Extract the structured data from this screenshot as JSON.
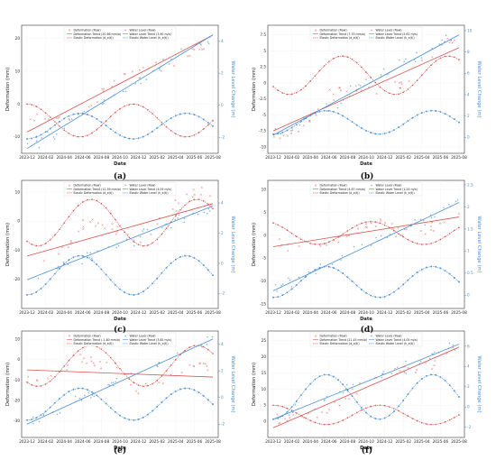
{
  "figure": {
    "colors": {
      "deformation": "#d9534f",
      "water": "#4a8fd4",
      "frame": "#333333"
    }
  },
  "chart_data": [
    {
      "type": "line",
      "panel_label": "(a)",
      "xlabel": "Date",
      "ylabel": "Deformation (mm)",
      "ylabel_right": "Water Level Change (m)",
      "x_ticks": [
        "2023-12",
        "2024-02",
        "2024-04",
        "2024-06",
        "2024-08",
        "2024-10",
        "2024-12",
        "2025-02",
        "2025-04",
        "2025-06",
        "2025-08"
      ],
      "y_ticks": [
        20,
        10,
        0,
        -10
      ],
      "y2_ticks": [
        4,
        2,
        0,
        -2
      ],
      "ylim": [
        -15,
        24
      ],
      "y2lim": [
        -3,
        5
      ],
      "legend": [
        "Deformation (Raw)",
        "Water Level (Raw)",
        "Deformation Trend (20.66 mm/a)",
        "Water Level Trend (3.90 m/a)",
        "Elastic Deformation (d_e(t))",
        "Elastic Water Level (h_e(t))"
      ],
      "legend_position": "top-center",
      "trend_def": [
        -8.5,
        21
      ],
      "trend_water": [
        -2.7,
        4.4
      ],
      "elastic_def": {
        "offset": -5,
        "amp": 5,
        "phase": 0
      },
      "elastic_water": {
        "offset": -1.3,
        "amp": 0.8,
        "phase": 0
      }
    },
    {
      "type": "line",
      "panel_label": "(b)",
      "xlabel": "Date",
      "ylabel": "Deformation (mm)",
      "ylabel_right": "Water Level Change (m)",
      "x_ticks": [
        "2023-12",
        "2024-02",
        "2024-04",
        "2024-06",
        "2024-08",
        "2024-10",
        "2024-12",
        "2025-02",
        "2025-04",
        "2025-06",
        "2025-08"
      ],
      "y_ticks": [
        7.5,
        5.0,
        2.5,
        0.0,
        -2.5,
        -5.0,
        -7.5,
        -10.0
      ],
      "y2_ticks": [
        10,
        8,
        6,
        4,
        2,
        0
      ],
      "ylim": [
        -11,
        9
      ],
      "y2lim": [
        -1.5,
        10.5
      ],
      "legend": [
        "Deformation (Raw)",
        "Water Level (Raw)",
        "Deformation Trend (7.33 mm/a)",
        "Water Level Trend (5.62 m/a)",
        "Elastic Deformation (d_e(t))",
        "Elastic Water Level (h_e(t))"
      ],
      "legend_position": "top-center",
      "trend_def": [
        -7.5,
        5.5
      ],
      "trend_water": [
        0.2,
        9.6
      ],
      "elastic_def": {
        "offset": 1.2,
        "amp": 3,
        "phase": 2.2
      },
      "elastic_water": {
        "offset": 1.4,
        "amp": 1.1,
        "phase": 0
      }
    },
    {
      "type": "line",
      "panel_label": "(c)",
      "xlabel": "Date",
      "ylabel": "Deformation (mm)",
      "ylabel_right": "Water Level Change (m)",
      "x_ticks": [
        "2023-12",
        "2024-02",
        "2024-04",
        "2024-06",
        "2024-08",
        "2024-10",
        "2024-12",
        "2025-02",
        "2025-04",
        "2025-06",
        "2025-08"
      ],
      "y_ticks": [
        10,
        0,
        -10,
        -20
      ],
      "y2_ticks": [
        4,
        2,
        0,
        -2
      ],
      "ylim": [
        -30,
        14
      ],
      "y2lim": [
        -3,
        5.5
      ],
      "legend": [
        "Deformation (Raw)",
        "Water Level (Raw)",
        "Deformation Trend (12.39 mm/a)",
        "Water Level Trend (4.09 m/a)",
        "Elastic Deformation (d_e(t))",
        "Elastic Water Level (h_e(t))"
      ],
      "legend_position": "top-center",
      "trend_def": [
        -12,
        6
      ],
      "trend_water": [
        -1.1,
        3.8
      ],
      "elastic_def": {
        "offset": -0.5,
        "amp": 8,
        "phase": 2.5
      },
      "elastic_water": {
        "offset": -0.8,
        "amp": 1.3,
        "phase": 0
      }
    },
    {
      "type": "line",
      "panel_label": "(d)",
      "xlabel": "Date",
      "ylabel": "Deformation (mm)",
      "ylabel_right": "Water Level Change (m)",
      "x_ticks": [
        "2023-12",
        "2024-02",
        "2024-04",
        "2024-06",
        "2024-08",
        "2024-10",
        "2024-12",
        "2025-02",
        "2025-04",
        "2025-06",
        "2025-08"
      ],
      "y_ticks": [
        10,
        5,
        0,
        -5,
        -10,
        -15
      ],
      "y2_ticks": [
        2.5,
        2.0,
        1.5,
        1.0,
        0.5,
        0.0
      ],
      "ylim": [
        -16,
        12
      ],
      "y2lim": [
        -0.3,
        2.6
      ],
      "legend": [
        "Deformation (Raw)",
        "Water Level (Raw)",
        "Deformation Trend (4.67 mm/a)",
        "Water Level Trend (1.24 m/a)",
        "Elastic Deformation (d_e(t))",
        "Elastic Water Level (h_e(t))"
      ],
      "legend_position": "top-center",
      "trend_def": [
        -2.5,
        4
      ],
      "trend_water": [
        0.1,
        2.1
      ],
      "elastic_def": {
        "offset": 0.5,
        "amp": 2.5,
        "phase": 0.5
      },
      "elastic_water": {
        "offset": 0.3,
        "amp": 0.35,
        "phase": 0
      }
    },
    {
      "type": "line",
      "panel_label": "(e)",
      "xlabel": "Date",
      "ylabel": "Deformation (mm)",
      "ylabel_right": "Water Level Change (m)",
      "x_ticks": [
        "2023-12",
        "2024-02",
        "2024-04",
        "2024-06",
        "2024-08",
        "2024-10",
        "2024-12",
        "2025-02",
        "2025-04",
        "2025-06",
        "2025-08"
      ],
      "y_ticks": [
        10,
        0,
        -10,
        -20,
        -30
      ],
      "y2_ticks": [
        4,
        2,
        0,
        -2
      ],
      "ylim": [
        -38,
        14
      ],
      "y2lim": [
        -3,
        5
      ],
      "legend": [
        "Deformation (Raw)",
        "Water Level (Raw)",
        "Deformation Trend (-1.80 mm/a)",
        "Water Level Trend (3.85 m/a)",
        "Elastic Deformation (d_e(t))",
        "Elastic Water Level (h_e(t))"
      ],
      "legend_position": "top-center",
      "trend_def": [
        -5,
        -8.5
      ],
      "trend_water": [
        -2,
        4.4
      ],
      "elastic_def": {
        "offset": -3,
        "amp": 10,
        "phase": 2.5
      },
      "elastic_water": {
        "offset": -0.5,
        "amp": 1.2,
        "phase": 0
      }
    },
    {
      "type": "line",
      "panel_label": "(f)",
      "xlabel": "Date",
      "ylabel": "Deformation (mm)",
      "ylabel_right": "Water Level Change (m)",
      "x_ticks": [
        "2023-12",
        "2024-02",
        "2024-04",
        "2024-06",
        "2024-08",
        "2024-10",
        "2024-12",
        "2025-02",
        "2025-04",
        "2025-06",
        "2025-08"
      ],
      "y_ticks": [
        25,
        20,
        15,
        10,
        5,
        0
      ],
      "y2_ticks": [
        6,
        4,
        2,
        0,
        -2
      ],
      "ylim": [
        -5,
        28
      ],
      "y2lim": [
        -3,
        7.5
      ],
      "legend": [
        "Deformation (Raw)",
        "Water Level (Raw)",
        "Deformation Trend (21.45 mm/a)",
        "Water Level Trend (4.05 m/a)",
        "Elastic Deformation (d_e(t))",
        "Elastic Water Level (h_e(t))"
      ],
      "legend_position": "top-center",
      "trend_def": [
        -2,
        23
      ],
      "trend_water": [
        -1.2,
        6.2
      ],
      "elastic_def": {
        "offset": 2,
        "amp": 3,
        "phase": 0
      },
      "elastic_water": {
        "offset": 1,
        "amp": 2.2,
        "phase": 0
      }
    }
  ]
}
